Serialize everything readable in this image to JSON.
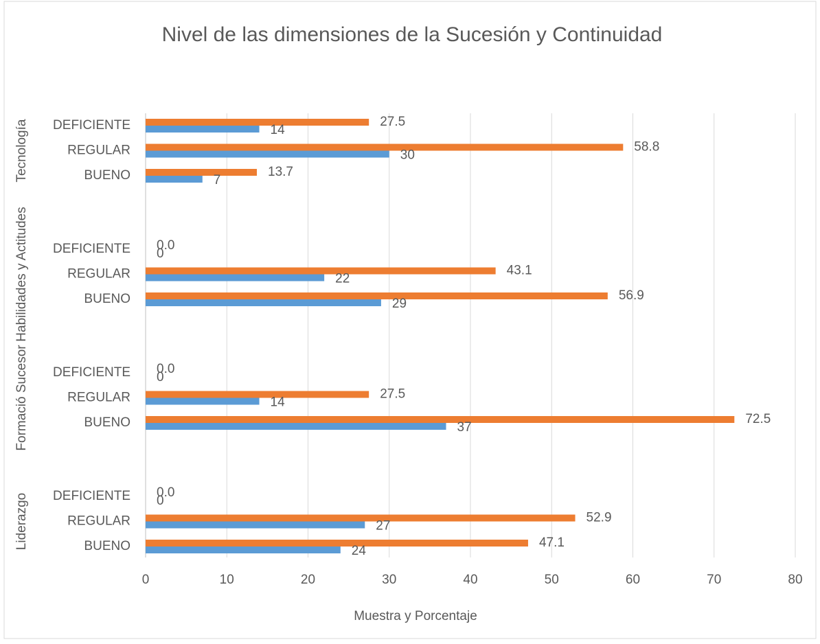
{
  "chart_data": {
    "type": "bar",
    "orientation": "horizontal",
    "title": "Nivel de las dimensiones de la Sucesión y Continuidad",
    "x_label": "Muestra y Porcentaje",
    "groups": [
      "Tecnología",
      "Habilidades y Actitudes",
      "Formació Sucesor",
      "Liderazgo"
    ],
    "categories": [
      "DEFICIENTE",
      "REGULAR",
      "BUENO",
      "DEFICIENTE",
      "REGULAR",
      "BUENO",
      "DEFICIENTE",
      "REGULAR",
      "BUENO",
      "DEFICIENTE",
      "REGULAR",
      "BUENO"
    ],
    "series": [
      {
        "color": "#ed7d31",
        "values": [
          27.5,
          58.8,
          13.7,
          0,
          43.1,
          56.9,
          0,
          27.5,
          72.5,
          0,
          52.9,
          47.1
        ],
        "value_labels": [
          "27.5",
          "58.8",
          "13.7",
          "0.0",
          "43.1",
          "56.9",
          "0.0",
          "27.5",
          "72.5",
          "0.0",
          "52.9",
          "47.1"
        ]
      },
      {
        "color": "#5b9bd5",
        "values": [
          14,
          30,
          7,
          0,
          22,
          29,
          0,
          14,
          37,
          0,
          27,
          24
        ]
      }
    ],
    "xlim": [
      0,
      80
    ],
    "xticks": [
      0,
      10,
      20,
      30,
      40,
      50,
      60,
      70,
      80
    ],
    "grid": true
  }
}
